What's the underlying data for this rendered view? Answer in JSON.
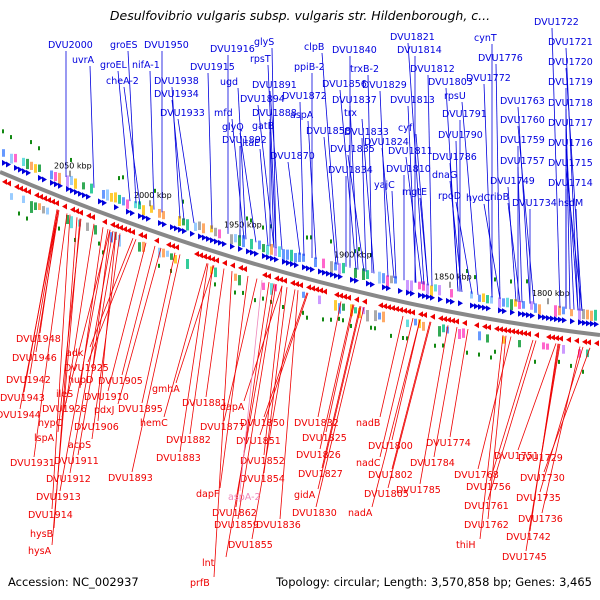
{
  "title": "Desulfovibrio vulgaris subsp. vulgaris str. Hildenborough, c...",
  "footer": {
    "accession": "Accession: NC_002937",
    "summary": "Topology: circular; Length: 3,570,858 bp; Genes: 3,465"
  },
  "colors": {
    "forward_strand": "#0000dd",
    "reverse_strand": "#ee0000",
    "highlight_gene": "#ee88bb",
    "backbone": "#888888",
    "marker": "#118811"
  },
  "ticks": [
    {
      "kbp": 2050,
      "label": "2050 kbp"
    },
    {
      "kbp": 2000,
      "label": "2000 kbp"
    },
    {
      "kbp": 1950,
      "label": "1950 kbp"
    },
    {
      "kbp": 1900,
      "label": "1900 kbp"
    },
    {
      "kbp": 1850,
      "label": "1850 kbp"
    },
    {
      "kbp": 1800,
      "label": "1800 kbp"
    }
  ],
  "forward_genes": [
    {
      "name": "DVU2000"
    },
    {
      "name": "uvrA"
    },
    {
      "name": "groES"
    },
    {
      "name": "groEL"
    },
    {
      "name": "cheA-2"
    },
    {
      "name": "DVU1950"
    },
    {
      "name": "nifA-1"
    },
    {
      "name": "DVU1938"
    },
    {
      "name": "DVU1934"
    },
    {
      "name": "DVU1933"
    },
    {
      "name": "DVU1916"
    },
    {
      "name": "DVU1915"
    },
    {
      "name": "ugd"
    },
    {
      "name": "mfd"
    },
    {
      "name": "glyQ"
    },
    {
      "name": "DVU1892"
    },
    {
      "name": "glyS"
    },
    {
      "name": "rpsT"
    },
    {
      "name": "DVU1891"
    },
    {
      "name": "DVU1894"
    },
    {
      "name": "DVU1888"
    },
    {
      "name": "gatB"
    },
    {
      "name": "ltaE"
    },
    {
      "name": "DVU1870"
    },
    {
      "name": "clpB"
    },
    {
      "name": "ppiB-2"
    },
    {
      "name": "DVU1872"
    },
    {
      "name": "aspA"
    },
    {
      "name": "DVU1858"
    },
    {
      "name": "DVU1856"
    },
    {
      "name": "DVU1840"
    },
    {
      "name": "trxB-2"
    },
    {
      "name": "DVU1837"
    },
    {
      "name": "trx"
    },
    {
      "name": "DVU1835"
    },
    {
      "name": "DVU1834"
    },
    {
      "name": "DVU1833"
    },
    {
      "name": "DVU1829"
    },
    {
      "name": "DVU1824"
    },
    {
      "name": "DVU1821"
    },
    {
      "name": "DVU1814"
    },
    {
      "name": "DVU1812"
    },
    {
      "name": "DVU1813"
    },
    {
      "name": "cyf"
    },
    {
      "name": "DVU1811"
    },
    {
      "name": "DVU1810"
    },
    {
      "name": "yajC"
    },
    {
      "name": "mgtE"
    },
    {
      "name": "DVU1803"
    },
    {
      "name": "rpsU"
    },
    {
      "name": "DVU1791"
    },
    {
      "name": "DVU1790"
    },
    {
      "name": "DVU1786"
    },
    {
      "name": "dnaG"
    },
    {
      "name": "rpoD"
    },
    {
      "name": "cynT"
    },
    {
      "name": "DVU1776"
    },
    {
      "name": "DVU1772"
    },
    {
      "name": "DVU1763"
    },
    {
      "name": "DVU1760"
    },
    {
      "name": "DVU1759"
    },
    {
      "name": "DVU1757"
    },
    {
      "name": "DVU1749"
    },
    {
      "name": "ribB"
    },
    {
      "name": "hydC"
    },
    {
      "name": "DVU1734"
    },
    {
      "name": "hsdM"
    },
    {
      "name": "DVU1722"
    },
    {
      "name": "DVU1721"
    },
    {
      "name": "DVU1720"
    },
    {
      "name": "DVU1719"
    },
    {
      "name": "DVU1718"
    },
    {
      "name": "DVU1717"
    },
    {
      "name": "DVU1716"
    },
    {
      "name": "DVU1715"
    },
    {
      "name": "DVU1714"
    }
  ],
  "reverse_genes": [
    {
      "name": "DVU1948"
    },
    {
      "name": "DVU1946"
    },
    {
      "name": "DVU1942"
    },
    {
      "name": "DVU1943"
    },
    {
      "name": "DVU1944"
    },
    {
      "name": "adk"
    },
    {
      "name": "DVU1925"
    },
    {
      "name": "hupD"
    },
    {
      "name": "ileS"
    },
    {
      "name": "DVU1926"
    },
    {
      "name": "DVU1905"
    },
    {
      "name": "DVU1910"
    },
    {
      "name": "pdxJ"
    },
    {
      "name": "hypC"
    },
    {
      "name": "DVU1906"
    },
    {
      "name": "lspA"
    },
    {
      "name": "acpS"
    },
    {
      "name": "DVU1931"
    },
    {
      "name": "DVU1911"
    },
    {
      "name": "DVU1912"
    },
    {
      "name": "DVU1913"
    },
    {
      "name": "DVU1914"
    },
    {
      "name": "hysB"
    },
    {
      "name": "hysA"
    },
    {
      "name": "DVU1895"
    },
    {
      "name": "gmhA"
    },
    {
      "name": "hemC"
    },
    {
      "name": "DVU1893"
    },
    {
      "name": "DVU1881"
    },
    {
      "name": "DVU1882"
    },
    {
      "name": "DVU1883"
    },
    {
      "name": "DVU1877"
    },
    {
      "name": "dapA"
    },
    {
      "name": "DVU1850"
    },
    {
      "name": "DVU1851"
    },
    {
      "name": "DVU1852"
    },
    {
      "name": "DVU1854"
    },
    {
      "name": "dapF"
    },
    {
      "name": "DVU1862"
    },
    {
      "name": "DVU1859"
    },
    {
      "name": "DVU1855"
    },
    {
      "name": "lnt"
    },
    {
      "name": "prfB"
    },
    {
      "name": "DVU1832"
    },
    {
      "name": "DVU1825"
    },
    {
      "name": "DVU1826"
    },
    {
      "name": "DVU1827"
    },
    {
      "name": "gidA"
    },
    {
      "name": "DVU1830"
    },
    {
      "name": "DVU1836"
    },
    {
      "name": "nadB"
    },
    {
      "name": "DVU1800"
    },
    {
      "name": "nadC"
    },
    {
      "name": "DVU1802"
    },
    {
      "name": "DVU1805"
    },
    {
      "name": "nadA"
    },
    {
      "name": "DVU1774"
    },
    {
      "name": "DVU1784"
    },
    {
      "name": "DVU1785"
    },
    {
      "name": "DVU1768"
    },
    {
      "name": "DVU1751"
    },
    {
      "name": "DVU1756"
    },
    {
      "name": "DVU1761"
    },
    {
      "name": "DVU1762"
    },
    {
      "name": "thiH"
    },
    {
      "name": "DVU1742"
    },
    {
      "name": "DVU1745"
    },
    {
      "name": "DVU1736"
    },
    {
      "name": "DVU1735"
    },
    {
      "name": "DVU1730"
    },
    {
      "name": "DVU1729"
    }
  ],
  "highlight_genes": [
    {
      "name": "aspA-2"
    }
  ]
}
